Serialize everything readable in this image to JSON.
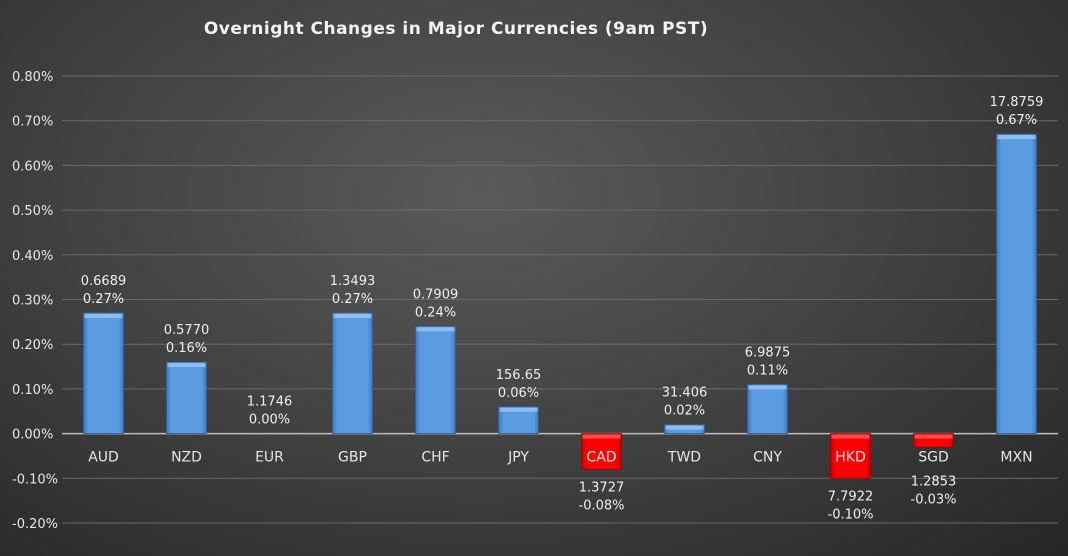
{
  "chart_data": {
    "type": "bar",
    "title": "Overnight Changes in Major Currencies (9am PST)",
    "xlabel": "",
    "ylabel": "",
    "ylim": [
      -0.2,
      0.8
    ],
    "yticks": [
      "-0.20%",
      "-0.10%",
      "0.00%",
      "0.10%",
      "0.20%",
      "0.30%",
      "0.40%",
      "0.50%",
      "0.60%",
      "0.70%",
      "0.80%"
    ],
    "grid": true,
    "categories": [
      "AUD",
      "NZD",
      "EUR",
      "GBP",
      "CHF",
      "JPY",
      "CAD",
      "TWD",
      "CNY",
      "HKD",
      "SGD",
      "MXN"
    ],
    "values": [
      0.27,
      0.16,
      0.0,
      0.27,
      0.24,
      0.06,
      -0.08,
      0.02,
      0.11,
      -0.1,
      -0.03,
      0.67
    ],
    "percent_labels": [
      "0.27%",
      "0.16%",
      "0.00%",
      "0.27%",
      "0.24%",
      "0.06%",
      "-0.08%",
      "0.02%",
      "0.11%",
      "-0.10%",
      "-0.03%",
      "0.67%"
    ],
    "rate_labels": [
      "0.6689",
      "0.5770",
      "1.1746",
      "1.3493",
      "0.7909",
      "156.65",
      "1.3727",
      "31.406",
      "6.9875",
      "7.7922",
      "1.2853",
      "17.8759"
    ],
    "colors": {
      "positive": "#5b9be0",
      "negative": "#ff0000"
    }
  }
}
